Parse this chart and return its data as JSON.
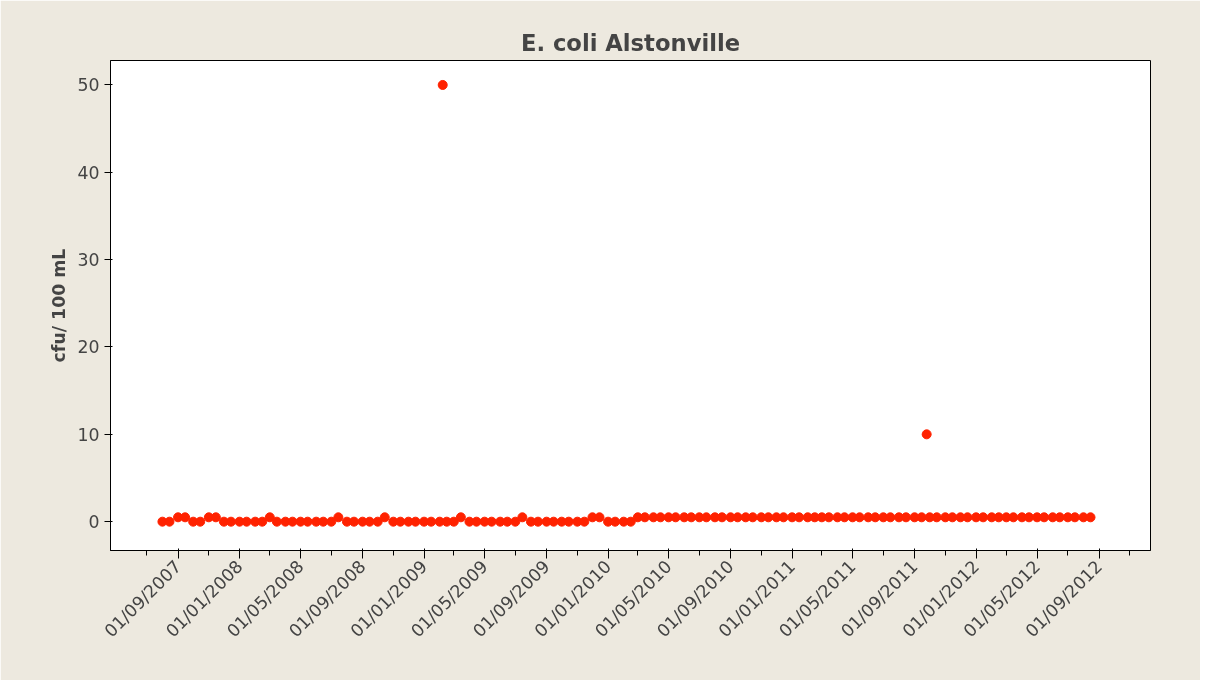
{
  "chart_data": {
    "type": "scatter",
    "title": "E. coli Alstonville",
    "ylabel": "cfu/ 100 mL",
    "marker": "circle",
    "grid": false,
    "xlim": [
      "2007-04-20",
      "2012-12-12"
    ],
    "ylim": [
      -3.3,
      52.8
    ],
    "yticks": [
      0,
      10,
      20,
      30,
      40,
      50
    ],
    "xticks": [
      {
        "value": "2007-07-01",
        "label": null
      },
      {
        "value": "2007-09-01",
        "label": "01/09/2007"
      },
      {
        "value": "2007-11-01",
        "label": null
      },
      {
        "value": "2008-01-01",
        "label": "01/01/2008"
      },
      {
        "value": "2008-03-01",
        "label": null
      },
      {
        "value": "2008-05-01",
        "label": "01/05/2008"
      },
      {
        "value": "2008-07-01",
        "label": null
      },
      {
        "value": "2008-09-01",
        "label": "01/09/2008"
      },
      {
        "value": "2008-11-01",
        "label": null
      },
      {
        "value": "2009-01-01",
        "label": "01/01/2009"
      },
      {
        "value": "2009-03-01",
        "label": null
      },
      {
        "value": "2009-05-01",
        "label": "01/05/2009"
      },
      {
        "value": "2009-07-01",
        "label": null
      },
      {
        "value": "2009-09-01",
        "label": "01/09/2009"
      },
      {
        "value": "2009-11-01",
        "label": null
      },
      {
        "value": "2010-01-01",
        "label": "01/01/2010"
      },
      {
        "value": "2010-03-01",
        "label": null
      },
      {
        "value": "2010-05-01",
        "label": "01/05/2010"
      },
      {
        "value": "2010-07-01",
        "label": null
      },
      {
        "value": "2010-09-01",
        "label": "01/09/2010"
      },
      {
        "value": "2010-11-01",
        "label": null
      },
      {
        "value": "2011-01-01",
        "label": "01/01/2011"
      },
      {
        "value": "2011-03-01",
        "label": null
      },
      {
        "value": "2011-05-01",
        "label": "01/05/2011"
      },
      {
        "value": "2011-07-01",
        "label": null
      },
      {
        "value": "2011-09-01",
        "label": "01/09/2011"
      },
      {
        "value": "2011-11-01",
        "label": null
      },
      {
        "value": "2012-01-01",
        "label": "01/01/2012"
      },
      {
        "value": "2012-03-01",
        "label": null
      },
      {
        "value": "2012-05-01",
        "label": "01/05/2012"
      },
      {
        "value": "2012-07-01",
        "label": null
      },
      {
        "value": "2012-09-01",
        "label": "01/09/2012"
      },
      {
        "value": "2012-11-01",
        "label": null
      }
    ],
    "series": [
      {
        "color": "#ff2200",
        "x": [
          "2007-08-01",
          "2007-08-15",
          "2007-09-01",
          "2007-09-15",
          "2007-10-01",
          "2007-10-15",
          "2007-11-01",
          "2007-11-15",
          "2007-12-01",
          "2007-12-15",
          "2008-01-01",
          "2008-01-15",
          "2008-02-01",
          "2008-02-15",
          "2008-03-01",
          "2008-03-15",
          "2008-04-01",
          "2008-04-15",
          "2008-05-01",
          "2008-05-15",
          "2008-06-01",
          "2008-06-15",
          "2008-07-01",
          "2008-07-15",
          "2008-08-01",
          "2008-08-15",
          "2008-09-01",
          "2008-09-15",
          "2008-10-01",
          "2008-10-15",
          "2008-11-01",
          "2008-11-15",
          "2008-12-01",
          "2008-12-15",
          "2009-01-01",
          "2009-01-15",
          "2009-02-01",
          "2009-02-07",
          "2009-02-15",
          "2009-03-01",
          "2009-03-15",
          "2009-04-01",
          "2009-04-15",
          "2009-05-01",
          "2009-05-15",
          "2009-06-01",
          "2009-06-15",
          "2009-07-01",
          "2009-07-15",
          "2009-08-01",
          "2009-08-15",
          "2009-09-01",
          "2009-09-15",
          "2009-10-01",
          "2009-10-15",
          "2009-11-01",
          "2009-11-15",
          "2009-12-01",
          "2009-12-15",
          "2010-01-01",
          "2010-01-15",
          "2010-02-01",
          "2010-02-15",
          "2010-03-01",
          "2010-03-15",
          "2010-04-01",
          "2010-04-15",
          "2010-05-01",
          "2010-05-15",
          "2010-06-01",
          "2010-06-15",
          "2010-07-01",
          "2010-07-15",
          "2010-08-01",
          "2010-08-15",
          "2010-09-01",
          "2010-09-15",
          "2010-10-01",
          "2010-10-15",
          "2010-11-01",
          "2010-11-15",
          "2010-12-01",
          "2010-12-15",
          "2011-01-01",
          "2011-01-15",
          "2011-02-01",
          "2011-02-15",
          "2011-03-01",
          "2011-03-15",
          "2011-04-01",
          "2011-04-15",
          "2011-05-01",
          "2011-05-15",
          "2011-06-01",
          "2011-06-15",
          "2011-07-01",
          "2011-07-15",
          "2011-08-01",
          "2011-08-15",
          "2011-09-01",
          "2011-09-15",
          "2011-09-25",
          "2011-10-01",
          "2011-10-15",
          "2011-11-01",
          "2011-11-15",
          "2011-12-01",
          "2011-12-15",
          "2012-01-01",
          "2012-01-15",
          "2012-02-01",
          "2012-02-15",
          "2012-03-01",
          "2012-03-15",
          "2012-04-01",
          "2012-04-15",
          "2012-05-01",
          "2012-05-15",
          "2012-06-01",
          "2012-06-15",
          "2012-07-01",
          "2012-07-15",
          "2012-08-01",
          "2012-08-15"
        ],
        "values": [
          0,
          0,
          0.5,
          0.5,
          0,
          0,
          0.5,
          0.5,
          0,
          0,
          0,
          0,
          0,
          0,
          0.5,
          0,
          0,
          0,
          0,
          0,
          0,
          0,
          0,
          0.5,
          0,
          0,
          0,
          0,
          0,
          0.5,
          0,
          0,
          0,
          0,
          0,
          0,
          0,
          50,
          0,
          0,
          0.5,
          0,
          0,
          0,
          0,
          0,
          0,
          0,
          0.5,
          0,
          0,
          0,
          0,
          0,
          0,
          0,
          0,
          0.5,
          0.5,
          0,
          0,
          0,
          0,
          0.5,
          0.5,
          0.5,
          0.5,
          0.5,
          0.5,
          0.5,
          0.5,
          0.5,
          0.5,
          0.5,
          0.5,
          0.5,
          0.5,
          0.5,
          0.5,
          0.5,
          0.5,
          0.5,
          0.5,
          0.5,
          0.5,
          0.5,
          0.5,
          0.5,
          0.5,
          0.5,
          0.5,
          0.5,
          0.5,
          0.5,
          0.5,
          0.5,
          0.5,
          0.5,
          0.5,
          0.5,
          0.5,
          10,
          0.5,
          0.5,
          0.5,
          0.5,
          0.5,
          0.5,
          0.5,
          0.5,
          0.5,
          0.5,
          0.5,
          0.5,
          0.5,
          0.5,
          0.5,
          0.5,
          0.5,
          0.5,
          0.5,
          0.5,
          0.5,
          0.5
        ]
      }
    ]
  }
}
